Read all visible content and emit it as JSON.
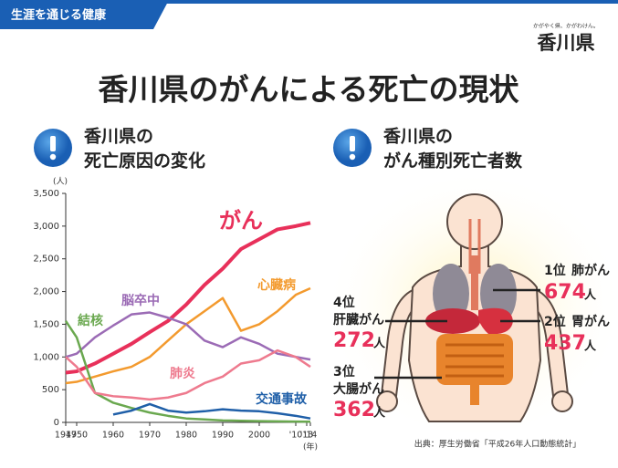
{
  "header": {
    "tag": "生涯を通じる健康",
    "logo_tagline": "かがやく県、かがわけん。",
    "logo": "香川県"
  },
  "title": "香川県のがんによる死亡の現状",
  "left_heading": {
    "line1": "香川県の",
    "line2": "死亡原因の変化"
  },
  "right_heading": {
    "line1": "香川県の",
    "line2": "がん種別死亡者数"
  },
  "chart_data": {
    "type": "line",
    "y_unit": "(人)",
    "x_unit": "(年)",
    "x": [
      1947,
      1950,
      1955,
      1960,
      1965,
      1970,
      1975,
      1980,
      1985,
      1990,
      1995,
      2000,
      2005,
      2010,
      2014
    ],
    "xlim": [
      1947,
      2014
    ],
    "xticks": [
      1947,
      1950,
      1960,
      1970,
      1980,
      1990,
      2000,
      {
        "value": 2010,
        "label": "'10"
      },
      {
        "value": 2013,
        "label": "'13"
      },
      {
        "value": 2014,
        "label": "'14"
      }
    ],
    "ylim": [
      0,
      3500
    ],
    "yticks": [
      0,
      {
        "value": 500,
        "label": "500"
      },
      {
        "value": 1000,
        "label": "1,000"
      },
      {
        "value": 1500,
        "label": "1,500"
      },
      {
        "value": 2000,
        "label": "2,000"
      },
      {
        "value": 2500,
        "label": "2,500"
      },
      {
        "value": 3000,
        "label": "3,000"
      },
      {
        "value": 3500,
        "label": "3,500"
      }
    ],
    "series": [
      {
        "name": "がん",
        "color": "#e8305a",
        "values": [
          760,
          780,
          900,
          1050,
          1200,
          1380,
          1550,
          1800,
          2100,
          2350,
          2650,
          2800,
          2950,
          3000,
          3050
        ]
      },
      {
        "name": "心臓病",
        "color": "#f39a2e",
        "values": [
          600,
          620,
          700,
          780,
          850,
          1000,
          1250,
          1500,
          1700,
          1900,
          1400,
          1500,
          1700,
          1950,
          2050
        ]
      },
      {
        "name": "脳卒中",
        "color": "#9b6bb5",
        "values": [
          1000,
          1050,
          1300,
          1480,
          1650,
          1680,
          1600,
          1500,
          1250,
          1150,
          1300,
          1200,
          1050,
          1000,
          960
        ]
      },
      {
        "name": "結核",
        "color": "#6aa84f",
        "values": [
          1550,
          1300,
          450,
          300,
          220,
          150,
          100,
          60,
          45,
          30,
          25,
          20,
          15,
          12,
          10
        ]
      },
      {
        "name": "肺炎",
        "color": "#ee7a8e",
        "values": [
          1000,
          850,
          450,
          400,
          380,
          350,
          380,
          450,
          600,
          700,
          900,
          950,
          1100,
          1000,
          850
        ]
      },
      {
        "name": "交通事故",
        "color": "#1f5fa8",
        "values": [
          null,
          null,
          null,
          120,
          180,
          280,
          180,
          150,
          170,
          200,
          180,
          170,
          140,
          100,
          60
        ]
      }
    ]
  },
  "ranking": {
    "count_unit": "人",
    "items": [
      {
        "rank": "1位",
        "name": "肺がん",
        "count": 674
      },
      {
        "rank": "2位",
        "name": "胃がん",
        "count": 437
      },
      {
        "rank": "4位",
        "name": "肝臓がん",
        "count": 272
      },
      {
        "rank": "3位",
        "name": "大腸がん",
        "count": 362
      }
    ]
  },
  "source": "出典：厚生労働省「平成26年人口動態統計」"
}
